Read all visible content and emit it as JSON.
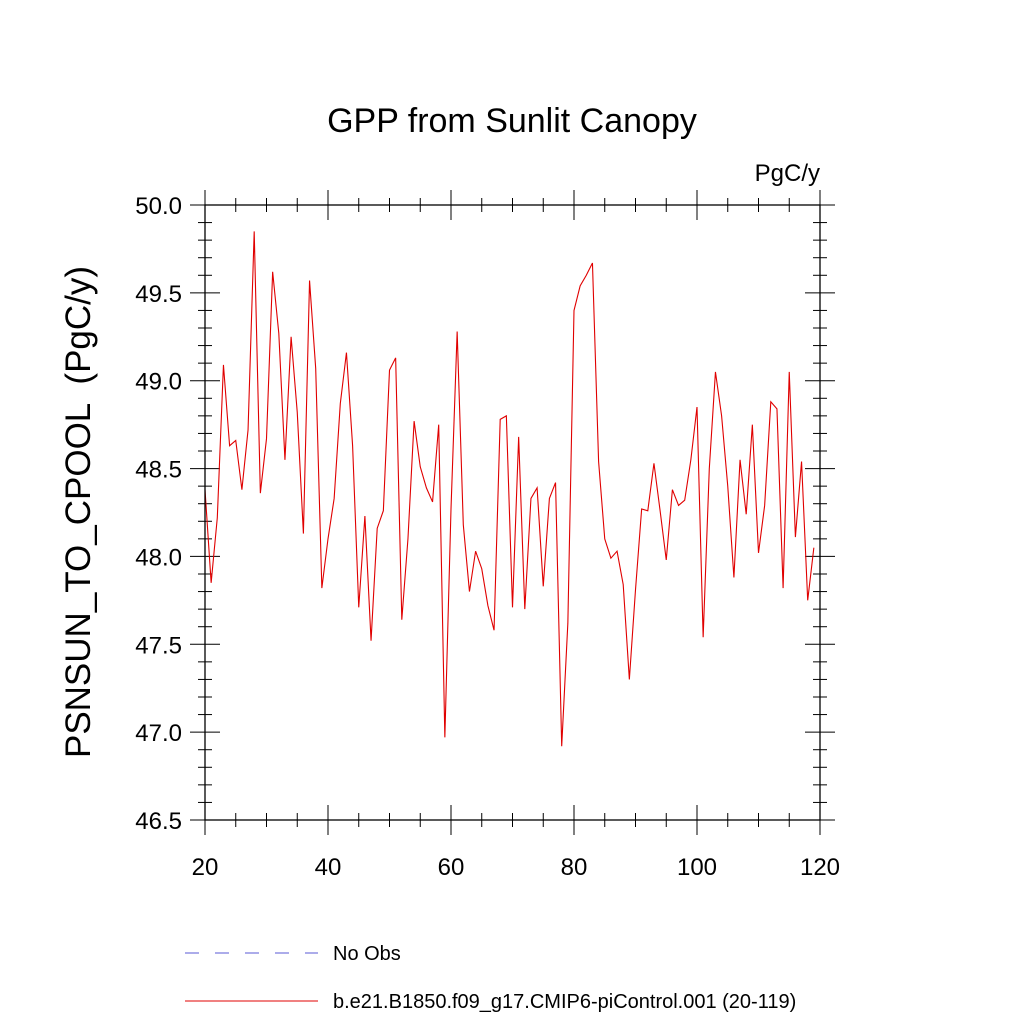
{
  "chart_data": {
    "type": "line",
    "title": "GPP from Sunlit Canopy",
    "units": "PgC/y",
    "xlabel": "",
    "ylabel": "PSNSUN_TO_CPOOL  (PgC/y)",
    "xlim": [
      20,
      120
    ],
    "ylim": [
      46.5,
      50.0
    ],
    "x_ticks": [
      20,
      40,
      60,
      80,
      100,
      120
    ],
    "x_tick_labels": [
      "20",
      "40",
      "60",
      "80",
      "100",
      "120"
    ],
    "y_ticks": [
      46.5,
      47.0,
      47.5,
      48.0,
      48.5,
      49.0,
      49.5,
      50.0
    ],
    "y_tick_labels": [
      "46.5",
      "47.0",
      "47.5",
      "48.0",
      "48.5",
      "49.0",
      "49.5",
      "50.0"
    ],
    "grid": false,
    "legend": [
      {
        "label": "No Obs",
        "style": "dashed",
        "color": "#5a5ad6"
      },
      {
        "label": "b.e21.B1850.f09_g17.CMIP6-piControl.001 (20-119)",
        "style": "solid",
        "color": "#e00000"
      }
    ],
    "series": [
      {
        "name": "b.e21.B1850.f09_g17.CMIP6-piControl.001 (20-119)",
        "color": "#e00000",
        "x": [
          20,
          21,
          22,
          23,
          24,
          25,
          26,
          27,
          28,
          29,
          30,
          31,
          32,
          33,
          34,
          35,
          36,
          37,
          38,
          39,
          40,
          41,
          42,
          43,
          44,
          45,
          46,
          47,
          48,
          49,
          50,
          51,
          52,
          53,
          54,
          55,
          56,
          57,
          58,
          59,
          60,
          61,
          62,
          63,
          64,
          65,
          66,
          67,
          68,
          69,
          70,
          71,
          72,
          73,
          74,
          75,
          76,
          77,
          78,
          79,
          80,
          81,
          82,
          83,
          84,
          85,
          86,
          87,
          88,
          89,
          90,
          91,
          92,
          93,
          94,
          95,
          96,
          97,
          98,
          99,
          100,
          101,
          102,
          103,
          104,
          105,
          106,
          107,
          108,
          109,
          110,
          111,
          112,
          113,
          114,
          115,
          116,
          117,
          118,
          119
        ],
        "values": [
          48.38,
          47.85,
          48.22,
          49.09,
          48.63,
          48.66,
          48.38,
          48.72,
          49.85,
          48.36,
          48.67,
          49.62,
          49.27,
          48.55,
          49.25,
          48.82,
          48.13,
          49.57,
          49.07,
          47.82,
          48.1,
          48.33,
          48.87,
          49.16,
          48.63,
          47.71,
          48.23,
          47.52,
          48.16,
          48.26,
          49.06,
          49.13,
          47.64,
          48.1,
          48.77,
          48.51,
          48.39,
          48.31,
          48.75,
          46.97,
          48.27,
          49.28,
          48.18,
          47.8,
          48.03,
          47.93,
          47.72,
          47.58,
          48.78,
          48.8,
          47.71,
          48.68,
          47.7,
          48.33,
          48.39,
          47.83,
          48.33,
          48.42,
          46.92,
          47.62,
          49.4,
          49.54,
          49.6,
          49.67,
          48.54,
          48.1,
          47.99,
          48.03,
          47.84,
          47.3,
          47.81,
          48.27,
          48.26,
          48.53,
          48.26,
          47.98,
          48.38,
          48.29,
          48.32,
          48.55,
          48.85,
          47.54,
          48.5,
          49.05,
          48.8,
          48.4,
          47.88,
          48.55,
          48.24,
          48.75,
          48.02,
          48.29,
          48.88,
          48.84,
          47.82,
          49.05,
          48.11,
          48.54,
          47.75,
          48.05
        ]
      }
    ]
  }
}
